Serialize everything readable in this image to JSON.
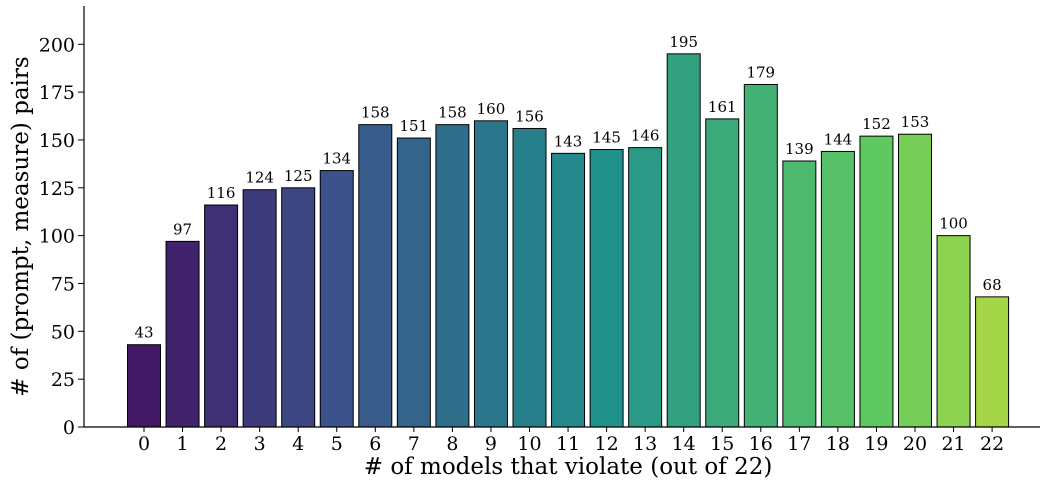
{
  "chart_data": {
    "type": "bar",
    "title": "",
    "xlabel": "# of models that violate (out of 22)",
    "ylabel": "# of (prompt, measure) pairs",
    "categories": [
      "0",
      "1",
      "2",
      "3",
      "4",
      "5",
      "6",
      "7",
      "8",
      "9",
      "10",
      "11",
      "12",
      "13",
      "14",
      "15",
      "16",
      "17",
      "18",
      "19",
      "20",
      "21",
      "22"
    ],
    "values": [
      43,
      97,
      116,
      124,
      125,
      134,
      158,
      151,
      158,
      160,
      156,
      143,
      145,
      146,
      195,
      161,
      179,
      139,
      144,
      152,
      153,
      100,
      68
    ],
    "ylim": [
      0,
      220
    ],
    "yticks": [
      0,
      25,
      50,
      75,
      100,
      125,
      150,
      175,
      200
    ],
    "grid": false,
    "legend": "none",
    "colormap": "viridis",
    "bar_edge_color": "#000000"
  }
}
